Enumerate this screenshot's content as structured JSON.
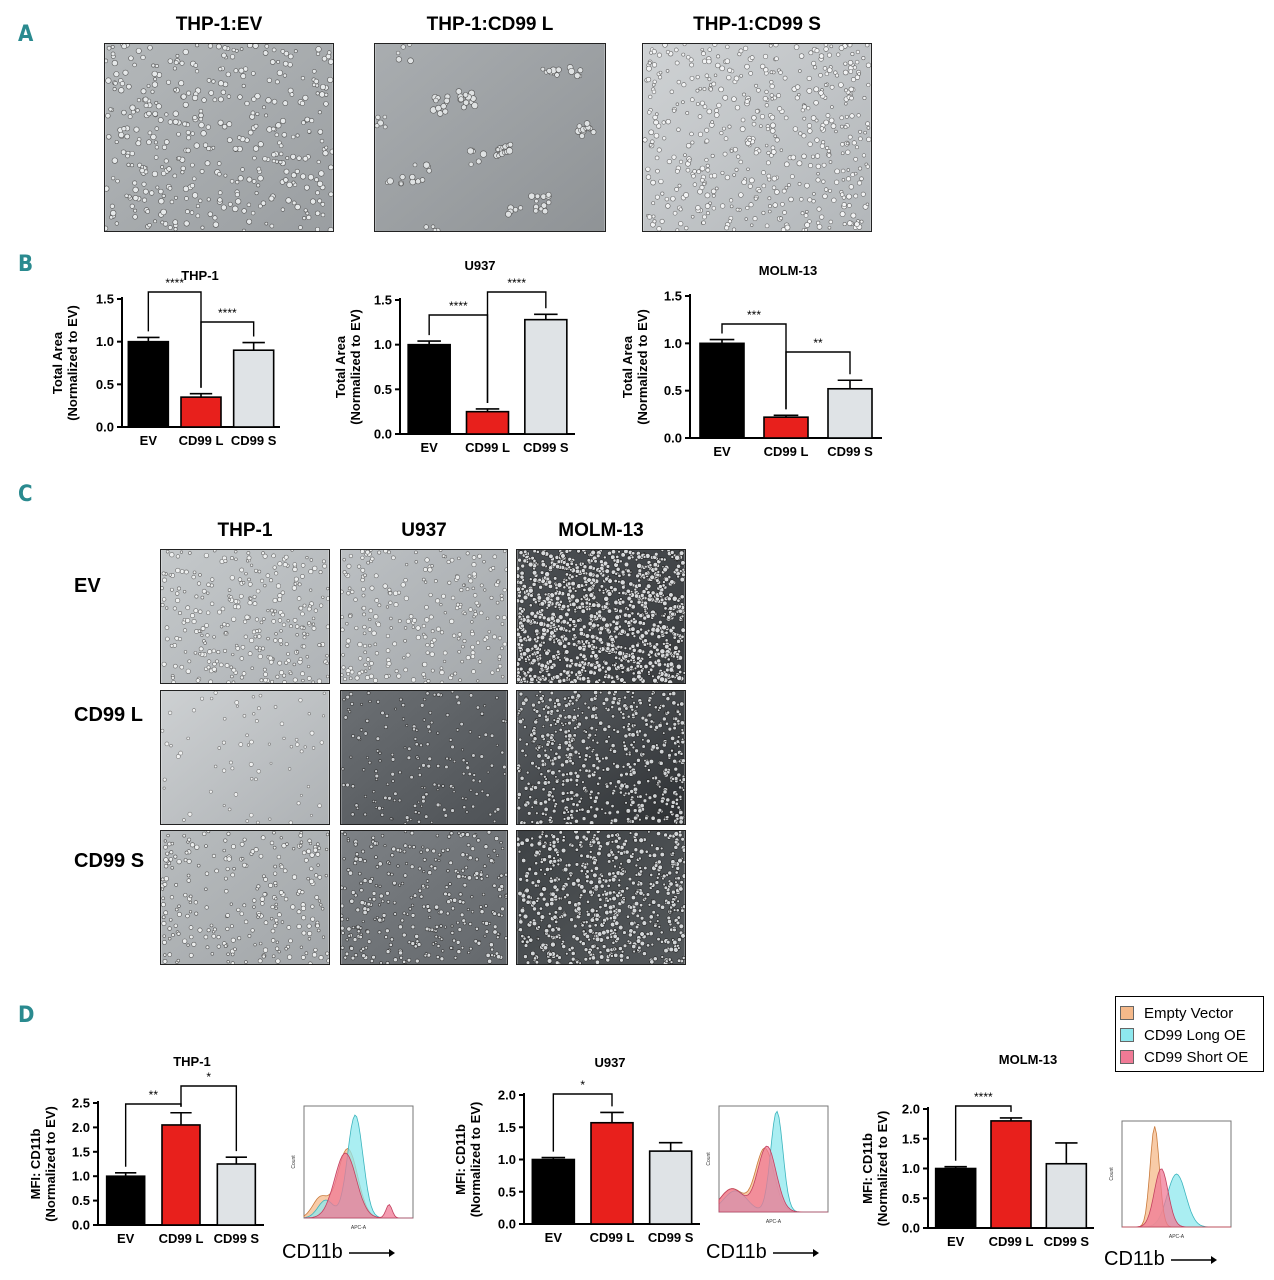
{
  "panels": {
    "A": {
      "letter": "A",
      "images": [
        {
          "title": "THP-1:EV",
          "name": "thp1-ev",
          "tone": "#b8bcbe",
          "density": 420,
          "cluster": false
        },
        {
          "title": "THP-1:CD99 L",
          "name": "thp1-cd99l",
          "tone": "#a6aaad",
          "density": 120,
          "cluster": true
        },
        {
          "title": "THP-1:CD99 S",
          "name": "thp1-cd99s",
          "tone": "#c8ccce",
          "density": 520,
          "cluster": false
        }
      ]
    },
    "B": {
      "letter": "B"
    },
    "C": {
      "letter": "C",
      "col_titles": [
        "THP-1",
        "U937",
        "MOLM-13"
      ],
      "row_labels": [
        "EV",
        "CD99 L",
        "CD99 S"
      ]
    },
    "D": {
      "letter": "D",
      "legend": [
        {
          "label": "Empty Vector",
          "color": "#f5b98a"
        },
        {
          "label": "CD99 Long OE",
          "color": "#8ee8ee"
        },
        {
          "label": "CD99 Short OE",
          "color": "#f07a95"
        }
      ],
      "xlabel": "CD11b"
    }
  },
  "chart_data": [
    {
      "type": "bar",
      "id": "B-thp1",
      "title": "THP-1",
      "categories": [
        "EV",
        "CD99 L",
        "CD99 S"
      ],
      "values": [
        1.0,
        0.35,
        0.9
      ],
      "errors": [
        0.05,
        0.04,
        0.09
      ],
      "ylabel": [
        "Total Area",
        "(Normalized to EV)"
      ],
      "ylim": [
        0,
        1.5
      ],
      "yticks": [
        "0.0",
        "0.5",
        "1.0",
        "1.5"
      ],
      "colors": [
        "#000000",
        "#e8201c",
        "#dfe3e6"
      ],
      "significance": [
        {
          "from": 0,
          "to": 1,
          "label": "****"
        },
        {
          "from": 1,
          "to": 2,
          "label": "****"
        }
      ]
    },
    {
      "type": "bar",
      "id": "B-u937",
      "title": "U937",
      "categories": [
        "EV",
        "CD99 L",
        "CD99 S"
      ],
      "values": [
        1.0,
        0.25,
        1.28
      ],
      "errors": [
        0.04,
        0.03,
        0.06
      ],
      "ylabel": [
        "Total Area",
        "(Normalized to EV)"
      ],
      "ylim": [
        0,
        1.5
      ],
      "yticks": [
        "0.0",
        "0.5",
        "1.0",
        "1.5"
      ],
      "colors": [
        "#000000",
        "#e8201c",
        "#dfe3e6"
      ],
      "significance": [
        {
          "from": 0,
          "to": 1,
          "label": "****"
        },
        {
          "from": 1,
          "to": 2,
          "label": "****"
        }
      ]
    },
    {
      "type": "bar",
      "id": "B-molm13",
      "title": "MOLM-13",
      "categories": [
        "EV",
        "CD99 L",
        "CD99 S"
      ],
      "values": [
        1.0,
        0.22,
        0.52
      ],
      "errors": [
        0.04,
        0.02,
        0.09
      ],
      "ylabel": [
        "Total Area",
        "(Normalized to EV)"
      ],
      "ylim": [
        0,
        1.5
      ],
      "yticks": [
        "0.0",
        "0.5",
        "1.0",
        "1.5"
      ],
      "colors": [
        "#000000",
        "#e8201c",
        "#dfe3e6"
      ],
      "significance": [
        {
          "from": 0,
          "to": 1,
          "label": "***"
        },
        {
          "from": 1,
          "to": 2,
          "label": "**"
        }
      ]
    },
    {
      "type": "bar",
      "id": "D-thp1",
      "title": "THP-1",
      "categories": [
        "EV",
        "CD99 L",
        "CD99 S"
      ],
      "values": [
        1.0,
        2.05,
        1.25
      ],
      "errors": [
        0.07,
        0.25,
        0.14
      ],
      "ylabel": [
        "MFI: CD11b",
        "(Normalized to EV)"
      ],
      "ylim": [
        0,
        2.5
      ],
      "yticks": [
        "0.0",
        "0.5",
        "1.0",
        "1.5",
        "2.0",
        "2.5"
      ],
      "colors": [
        "#000000",
        "#e8201c",
        "#dfe3e6"
      ],
      "significance": [
        {
          "from": 0,
          "to": 1,
          "label": "**"
        },
        {
          "from": 1,
          "to": 2,
          "label": "*"
        }
      ]
    },
    {
      "type": "bar",
      "id": "D-u937",
      "title": "U937",
      "categories": [
        "EV",
        "CD99 L",
        "CD99 S"
      ],
      "values": [
        1.0,
        1.57,
        1.13
      ],
      "errors": [
        0.03,
        0.16,
        0.13
      ],
      "ylabel": [
        "MFI: CD11b",
        "(Normalized to EV)"
      ],
      "ylim": [
        0,
        2.0
      ],
      "yticks": [
        "0.0",
        "0.5",
        "1.0",
        "1.5",
        "2.0"
      ],
      "colors": [
        "#000000",
        "#e8201c",
        "#dfe3e6"
      ],
      "significance": [
        {
          "from": 0,
          "to": 1,
          "label": "*"
        }
      ]
    },
    {
      "type": "bar",
      "id": "D-molm13",
      "title": "MOLM-13",
      "categories": [
        "EV",
        "CD99 L",
        "CD99 S"
      ],
      "values": [
        1.0,
        1.8,
        1.08
      ],
      "errors": [
        0.03,
        0.05,
        0.35
      ],
      "ylabel": [
        "MFI: CD11b",
        "(Normalized to EV)"
      ],
      "ylim": [
        0,
        2.0
      ],
      "yticks": [
        "0.0",
        "0.5",
        "1.0",
        "1.5",
        "2.0"
      ],
      "colors": [
        "#000000",
        "#e8201c",
        "#dfe3e6"
      ],
      "significance": [
        {
          "from": 0,
          "to": 1,
          "label": "****"
        }
      ]
    }
  ]
}
